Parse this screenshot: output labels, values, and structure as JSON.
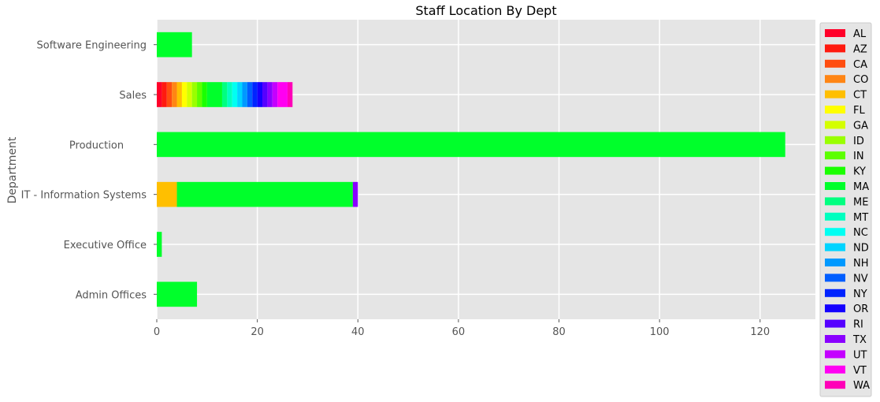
{
  "chart_data": {
    "type": "bar",
    "orientation": "horizontal",
    "stacked": true,
    "title": "Staff Location By Dept",
    "xlabel": "",
    "ylabel": "Department",
    "xlim": [
      0,
      131
    ],
    "xticks": [
      0,
      20,
      40,
      60,
      80,
      100,
      120
    ],
    "grid": true,
    "legend_position": "right",
    "categories": [
      "Admin Offices",
      "Executive Office",
      "IT - Information Systems",
      "Production       ",
      "Sales",
      "Software Engineering"
    ],
    "series": [
      {
        "name": "AL",
        "color": "#ff0029",
        "values": [
          0,
          0,
          0,
          0,
          1,
          0
        ]
      },
      {
        "name": "AZ",
        "color": "#ff1a0f",
        "values": [
          0,
          0,
          0,
          0,
          1,
          0
        ]
      },
      {
        "name": "CA",
        "color": "#ff4d0f",
        "values": [
          0,
          0,
          0,
          0,
          1,
          0
        ]
      },
      {
        "name": "CO",
        "color": "#ff8514",
        "values": [
          0,
          0,
          0,
          0,
          1,
          0
        ]
      },
      {
        "name": "CT",
        "color": "#ffbf00",
        "values": [
          0,
          0,
          4,
          0,
          1,
          0
        ]
      },
      {
        "name": "FL",
        "color": "#ffff00",
        "values": [
          0,
          0,
          0,
          0,
          1,
          0
        ]
      },
      {
        "name": "GA",
        "color": "#d4ff00",
        "values": [
          0,
          0,
          0,
          0,
          1,
          0
        ]
      },
      {
        "name": "ID",
        "color": "#99ff00",
        "values": [
          0,
          0,
          0,
          0,
          1,
          0
        ]
      },
      {
        "name": "IN",
        "color": "#5cff00",
        "values": [
          0,
          0,
          0,
          0,
          1,
          0
        ]
      },
      {
        "name": "KY",
        "color": "#1aff00",
        "values": [
          0,
          0,
          0,
          0,
          1,
          0
        ]
      },
      {
        "name": "MA",
        "color": "#00ff2b",
        "values": [
          8,
          1,
          35,
          125,
          3,
          7
        ]
      },
      {
        "name": "ME",
        "color": "#00ff80",
        "values": [
          0,
          0,
          0,
          0,
          1,
          0
        ]
      },
      {
        "name": "MT",
        "color": "#00ffbf",
        "values": [
          0,
          0,
          0,
          0,
          1,
          0
        ]
      },
      {
        "name": "NC",
        "color": "#00fff2",
        "values": [
          0,
          0,
          0,
          0,
          1,
          0
        ]
      },
      {
        "name": "ND",
        "color": "#00d4ff",
        "values": [
          0,
          0,
          0,
          0,
          1,
          0
        ]
      },
      {
        "name": "NH",
        "color": "#0099ff",
        "values": [
          0,
          0,
          0,
          0,
          1,
          0
        ]
      },
      {
        "name": "NV",
        "color": "#005eff",
        "values": [
          0,
          0,
          0,
          0,
          1,
          0
        ]
      },
      {
        "name": "NY",
        "color": "#0024ff",
        "values": [
          0,
          0,
          0,
          0,
          1,
          0
        ]
      },
      {
        "name": "OR",
        "color": "#1400ff",
        "values": [
          0,
          0,
          0,
          0,
          1,
          0
        ]
      },
      {
        "name": "RI",
        "color": "#5500ff",
        "values": [
          0,
          0,
          0,
          0,
          1,
          0
        ]
      },
      {
        "name": "TX",
        "color": "#8a00ff",
        "values": [
          0,
          0,
          1,
          0,
          1,
          0
        ]
      },
      {
        "name": "UT",
        "color": "#c400ff",
        "values": [
          0,
          0,
          0,
          0,
          1,
          0
        ]
      },
      {
        "name": "VT",
        "color": "#ff00f2",
        "values": [
          0,
          0,
          0,
          0,
          2,
          0
        ]
      },
      {
        "name": "WA",
        "color": "#ff00b8",
        "values": [
          0,
          0,
          0,
          0,
          1,
          0
        ]
      }
    ]
  }
}
